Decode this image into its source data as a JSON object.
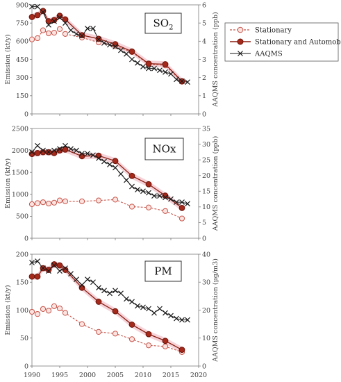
{
  "legend": [
    {
      "name": "Stationary",
      "series_key": "stationary"
    },
    {
      "name": "Stationary and Automobile",
      "series_key": "stat_auto"
    },
    {
      "name": "AAQMS",
      "series_key": "aaqms"
    }
  ],
  "x_ticks": [
    "1990",
    "1995",
    "2000",
    "2005",
    "2010",
    "2015",
    "2020"
  ],
  "colors": {
    "stationary": "#c8554a",
    "stat_auto": "#8b1f12",
    "aaqms": "#1a1a1a",
    "band": "#f2c4cc"
  },
  "chart_data": [
    {
      "type": "line",
      "panel_label": "SO2",
      "xlim": [
        1990,
        2020
      ],
      "left_ylabel": "Emission (kt/y)",
      "left_ylim": [
        0,
        900
      ],
      "left_ticks": [
        "0",
        "150",
        "300",
        "450",
        "600",
        "750",
        "900"
      ],
      "right_ylabel": "AAQMS concentration (ppb)",
      "right_ylim": [
        0,
        6
      ],
      "right_ticks": [
        "0",
        "1",
        "2",
        "3",
        "4",
        "5",
        "6"
      ],
      "stationary": {
        "x": [
          1990,
          1991,
          1992,
          1993,
          1994,
          1995,
          1996,
          1999,
          2002,
          2005,
          2008,
          2011,
          2014,
          2017
        ],
        "y": [
          615,
          625,
          690,
          665,
          670,
          700,
          660,
          630,
          590,
          560,
          510,
          410,
          400,
          265
        ]
      },
      "stat_auto": {
        "x": [
          1990,
          1991,
          1992,
          1993,
          1994,
          1995,
          1996,
          1999,
          2002,
          2005,
          2008,
          2011,
          2014,
          2017
        ],
        "y": [
          800,
          815,
          850,
          765,
          775,
          810,
          780,
          650,
          620,
          575,
          515,
          415,
          410,
          270
        ]
      },
      "aaqms": {
        "x": [
          1990,
          1991,
          1992,
          1993,
          1994,
          1995,
          1996,
          1997,
          1998,
          1999,
          2000,
          2001,
          2002,
          2003,
          2004,
          2005,
          2006,
          2007,
          2008,
          2009,
          2010,
          2011,
          2012,
          2013,
          2014,
          2015,
          2016,
          2017,
          2018
        ],
        "y": [
          5.9,
          5.9,
          5.6,
          4.9,
          5.1,
          5.3,
          5.0,
          4.6,
          4.4,
          4.3,
          4.7,
          4.7,
          4.1,
          3.9,
          3.8,
          3.7,
          3.5,
          3.3,
          3.0,
          2.8,
          2.6,
          2.5,
          2.5,
          2.4,
          2.3,
          2.2,
          1.9,
          1.8,
          1.75
        ]
      }
    },
    {
      "type": "line",
      "panel_label": "NOx",
      "xlim": [
        1990,
        2020
      ],
      "left_ylabel": "Emission (kt/y)",
      "left_ylim": [
        0,
        2500
      ],
      "left_ticks": [
        "0",
        "500",
        "1000",
        "1500",
        "2000",
        "2500"
      ],
      "right_ylabel": "AAQMS concentration (ppb)",
      "right_ylim": [
        0,
        35
      ],
      "right_ticks": [
        "0",
        "5",
        "10",
        "15",
        "20",
        "25",
        "30",
        "35"
      ],
      "stationary": {
        "x": [
          1990,
          1991,
          1992,
          1993,
          1994,
          1995,
          1996,
          1999,
          2002,
          2005,
          2008,
          2011,
          2014,
          2017
        ],
        "y": [
          775,
          800,
          820,
          790,
          810,
          860,
          840,
          840,
          860,
          880,
          720,
          700,
          620,
          450
        ]
      },
      "stat_auto": {
        "x": [
          1990,
          1991,
          1992,
          1993,
          1994,
          1995,
          1996,
          1999,
          2002,
          2005,
          2008,
          2011,
          2014,
          2017
        ],
        "y": [
          1920,
          1940,
          1960,
          1960,
          1940,
          2000,
          2020,
          1870,
          1880,
          1760,
          1420,
          1230,
          970,
          690
        ]
      },
      "aaqms": {
        "x": [
          1990,
          1991,
          1992,
          1993,
          1994,
          1995,
          1996,
          1997,
          1998,
          1999,
          2000,
          2001,
          2002,
          2003,
          2004,
          2005,
          2006,
          2007,
          2008,
          2009,
          2010,
          2011,
          2012,
          2013,
          2014,
          2015,
          2016,
          2017,
          2018
        ],
        "y": [
          27.5,
          29.5,
          28,
          27.5,
          28,
          28.5,
          29.5,
          28.5,
          28,
          27,
          27,
          26.5,
          25.5,
          24.5,
          23.5,
          22.5,
          20.5,
          18.5,
          16.5,
          15.5,
          15,
          14.5,
          13.5,
          13.5,
          13,
          12.5,
          11.5,
          11.5,
          11
        ]
      }
    },
    {
      "type": "line",
      "panel_label": "PM",
      "xlim": [
        1990,
        2020
      ],
      "left_ylabel": "Emission (kt/y)",
      "left_ylim": [
        0,
        200
      ],
      "left_ticks": [
        "0",
        "50",
        "100",
        "150",
        "200"
      ],
      "right_ylabel": "AAQMS concentration (μg/m3)",
      "right_ylim": [
        0,
        40
      ],
      "right_ticks": [
        "0",
        "10",
        "20",
        "30",
        "40"
      ],
      "stationary": {
        "x": [
          1990,
          1991,
          1992,
          1993,
          1994,
          1995,
          1996,
          1999,
          2002,
          2005,
          2008,
          2011,
          2014,
          2017
        ],
        "y": [
          97,
          93,
          102,
          99,
          107,
          103,
          95,
          75,
          61,
          58,
          48,
          37,
          35,
          25
        ]
      },
      "stat_auto": {
        "x": [
          1990,
          1991,
          1992,
          1993,
          1994,
          1995,
          1996,
          1999,
          2002,
          2005,
          2008,
          2011,
          2014,
          2017
        ],
        "y": [
          160,
          160,
          175,
          172,
          182,
          180,
          172,
          140,
          115,
          98,
          74,
          57,
          45,
          29
        ]
      },
      "aaqms": {
        "x": [
          1990,
          1991,
          1992,
          1993,
          1994,
          1995,
          1996,
          1997,
          1998,
          1999,
          2000,
          2001,
          2002,
          2003,
          2004,
          2005,
          2006,
          2007,
          2008,
          2009,
          2010,
          2011,
          2012,
          2013,
          2014,
          2015,
          2016,
          2017,
          2018
        ],
        "y": [
          37,
          37.5,
          35,
          34,
          36,
          34,
          35,
          33,
          31,
          29,
          31,
          30,
          28,
          27,
          26,
          27,
          26,
          24,
          23,
          21.5,
          21,
          20.5,
          19,
          20.5,
          19,
          18,
          17,
          16.5,
          16.5
        ]
      }
    }
  ]
}
